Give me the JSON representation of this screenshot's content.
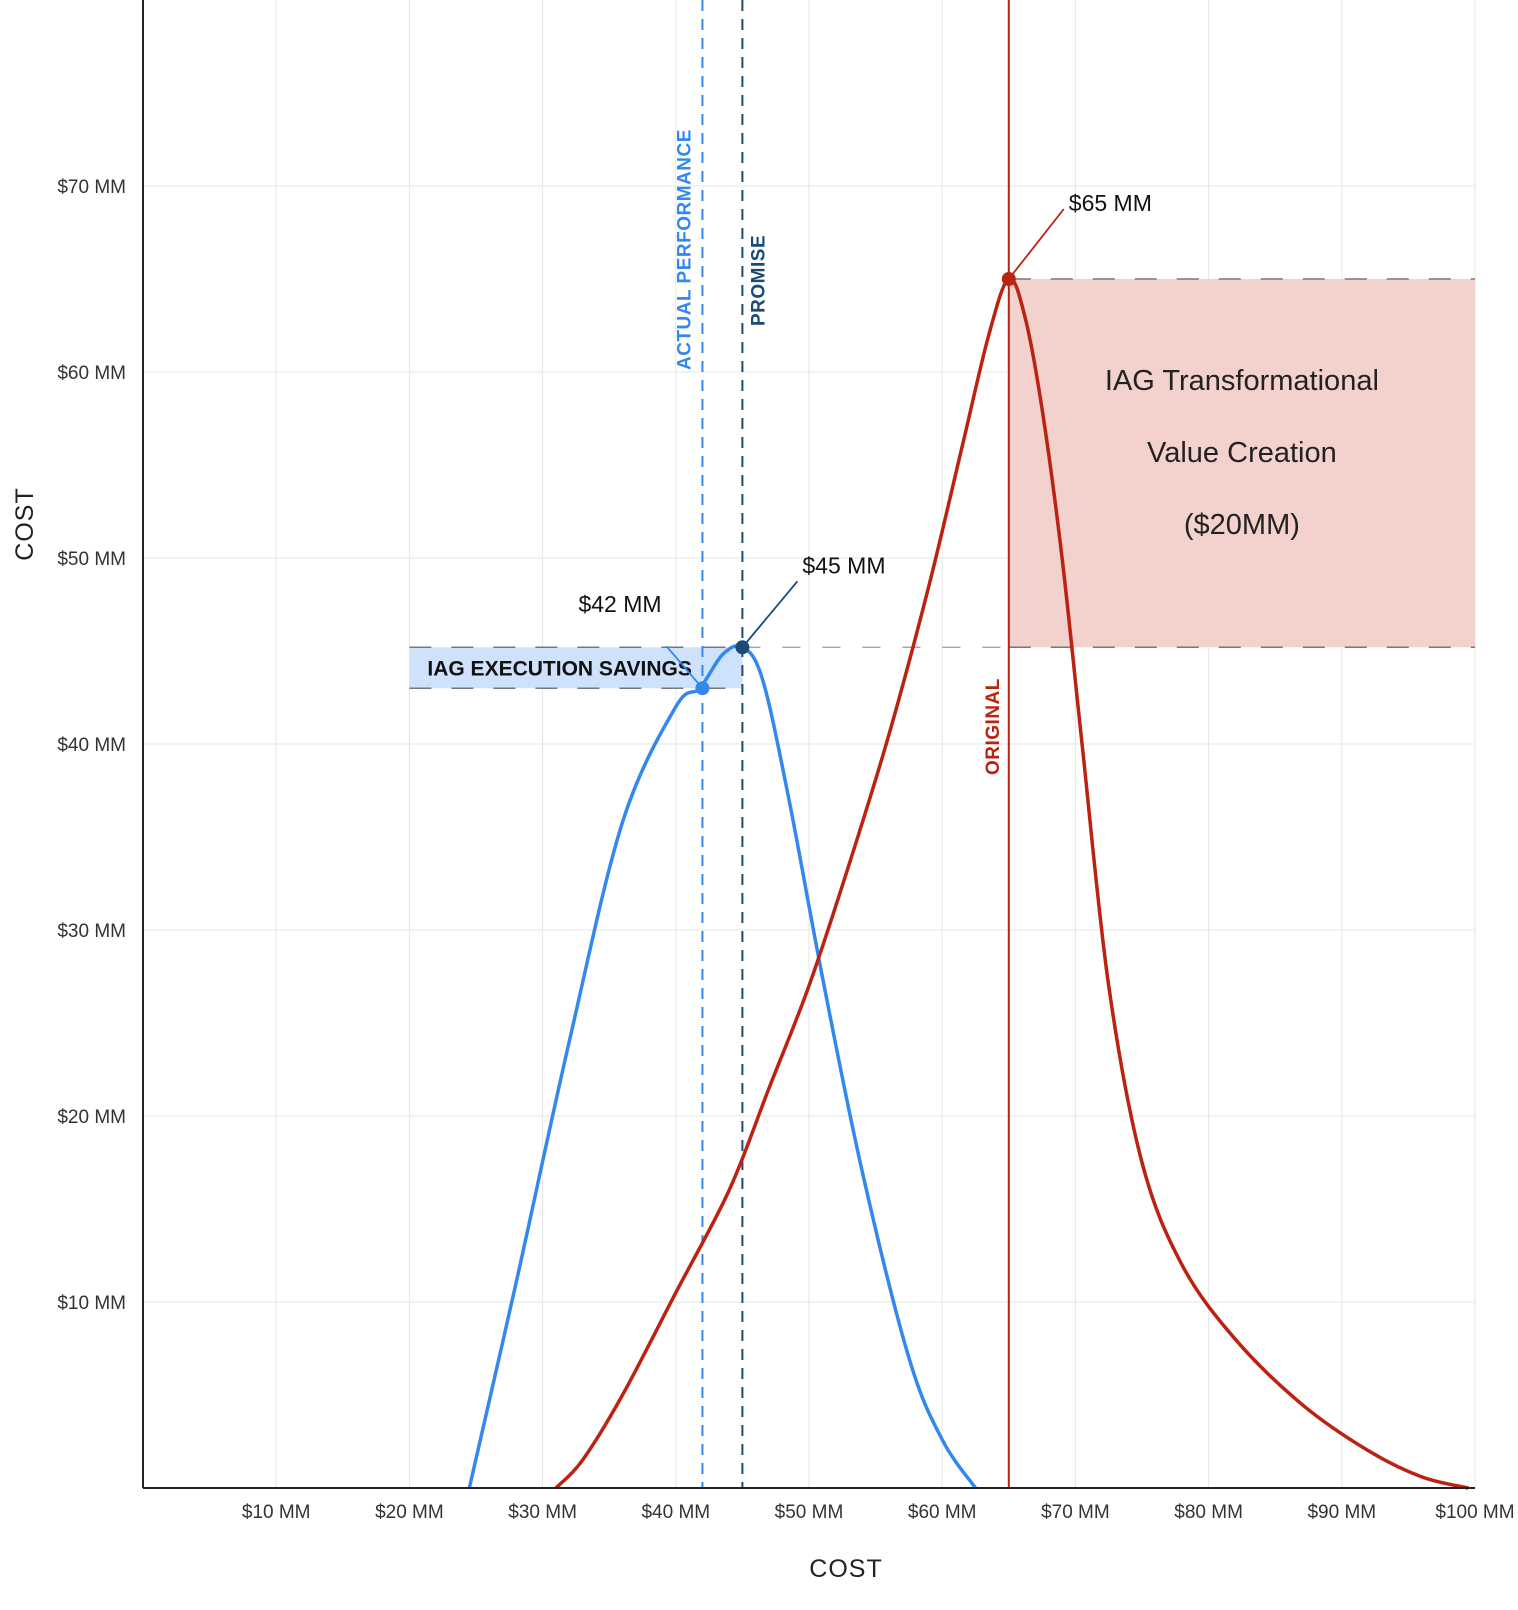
{
  "chart_data": {
    "type": "line",
    "xlabel": "COST",
    "ylabel": "COST",
    "xlim": [
      0,
      100
    ],
    "ylim": [
      0,
      80
    ],
    "x_ticks": [
      "$10 MM",
      "$20 MM",
      "$30 MM",
      "$40 MM",
      "$50 MM",
      "$60 MM",
      "$70 MM",
      "$80 MM",
      "$90 MM",
      "$100 MM"
    ],
    "x_tick_values": [
      10,
      20,
      30,
      40,
      50,
      60,
      70,
      80,
      90,
      100
    ],
    "y_ticks": [
      "$10 MM",
      "$20 MM",
      "$30 MM",
      "$40 MM",
      "$50 MM",
      "$60 MM",
      "$70 MM"
    ],
    "y_tick_values": [
      10,
      20,
      30,
      40,
      50,
      60,
      70
    ],
    "grid": true,
    "legend": "none",
    "series": [
      {
        "color": "#3388ee",
        "points": [
          [
            24.5,
            0
          ],
          [
            28,
            11
          ],
          [
            32,
            24
          ],
          [
            36,
            35.8
          ],
          [
            40,
            42
          ],
          [
            41.8,
            43
          ],
          [
            43.5,
            44.8
          ],
          [
            45,
            45.2
          ],
          [
            46.5,
            43.5
          ],
          [
            48.5,
            37
          ],
          [
            51,
            27.5
          ],
          [
            54,
            17
          ],
          [
            57.5,
            7
          ],
          [
            60,
            2.6
          ],
          [
            62.5,
            0
          ]
        ]
      },
      {
        "color": "#bb2211",
        "points": [
          [
            31,
            0
          ],
          [
            33,
            1.5
          ],
          [
            36,
            5
          ],
          [
            40,
            10.5
          ],
          [
            44,
            16
          ],
          [
            47,
            21.5
          ],
          [
            50,
            27
          ],
          [
            53,
            33.5
          ],
          [
            56,
            40.5
          ],
          [
            59,
            48.5
          ],
          [
            61.5,
            56
          ],
          [
            63.5,
            62
          ],
          [
            65,
            65
          ],
          [
            66.2,
            63
          ],
          [
            67.5,
            58
          ],
          [
            69,
            50
          ],
          [
            70.5,
            40
          ],
          [
            72.5,
            27
          ],
          [
            75,
            17.5
          ],
          [
            78,
            12
          ],
          [
            82,
            8
          ],
          [
            87,
            4.5
          ],
          [
            92,
            2
          ],
          [
            96,
            0.6
          ],
          [
            99.5,
            0
          ]
        ]
      }
    ],
    "vertical_lines": [
      {
        "label": "ACTUAL PERFORMANCE",
        "x": 42,
        "color": "#3388ee",
        "style": "dashed"
      },
      {
        "label": "PROMISE",
        "x": 45,
        "color": "#1a4a7a",
        "style": "dashed"
      },
      {
        "label": "ORIGINAL",
        "x": 65,
        "color": "#bb2211",
        "style": "solid"
      }
    ],
    "points": [
      {
        "label": "$42 MM",
        "x": 42,
        "y": 43,
        "color": "#3388ee"
      },
      {
        "label": "$45 MM",
        "x": 45,
        "y": 45.2,
        "color": "#1a4a7a"
      },
      {
        "label": "$65 MM",
        "x": 65,
        "y": 65,
        "color": "#bb2211"
      }
    ],
    "bands": [
      {
        "label": "IAG EXECUTION SAVINGS",
        "x": [
          20,
          45
        ],
        "y": [
          43,
          45.2
        ],
        "color": "#cfe2fb"
      },
      {
        "label_lines": [
          "IAG Transformational",
          "Value Creation",
          "($20MM)"
        ],
        "x": [
          65,
          100
        ],
        "y": [
          45.2,
          65
        ],
        "color": "#f3d1cc"
      }
    ]
  }
}
